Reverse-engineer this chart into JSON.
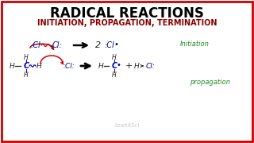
{
  "title1": "RADICAL REACTIONS",
  "title2": "INITIATION, PROPAGATION, TERMINATION",
  "title1_color": "#000000",
  "title2_color": "#8B0000",
  "bg_color": "#FFFFFF",
  "border_color": "#CC0000",
  "initiation_label": "Initiation",
  "propagation_label": "propagation",
  "watermark": "Leah4Sci",
  "label_initiation_color": "#228B22",
  "label_propagation_color": "#228B22",
  "cl_color": "#00008B",
  "h_color": "#222222",
  "c_color": "#0000CD",
  "bond_squig_color": "#CC0000",
  "curve_arrow_color": "#8B0000",
  "red_curve_prop": "#CC0000",
  "watermark_color": "#BBBBBB"
}
